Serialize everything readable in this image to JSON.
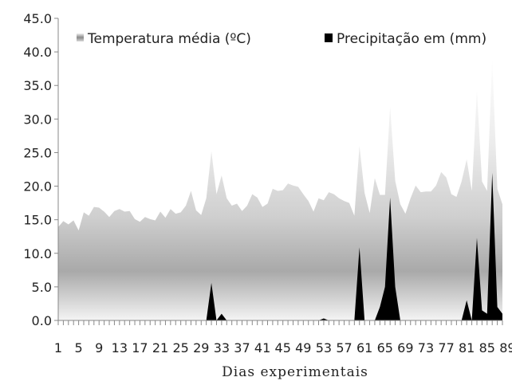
{
  "chart_data": {
    "type": "area",
    "xlabel": "Dias  experimentais",
    "ylabel": "",
    "ylim": [
      0,
      45
    ],
    "yticks": [
      "0.0",
      "5.0",
      "10.0",
      "15.0",
      "20.0",
      "25.0",
      "30.0",
      "35.0",
      "40.0",
      "45.0"
    ],
    "x_tick_labels": [
      "1",
      "5",
      "9",
      "13",
      "17",
      "21",
      "25",
      "29",
      "33",
      "37",
      "41",
      "45",
      "49",
      "53",
      "57",
      "61",
      "65",
      "69",
      "73",
      "77",
      "81",
      "85",
      "89"
    ],
    "legend_position": "top",
    "x": [
      1,
      2,
      3,
      4,
      5,
      6,
      7,
      8,
      9,
      10,
      11,
      12,
      13,
      14,
      15,
      16,
      17,
      18,
      19,
      20,
      21,
      22,
      23,
      24,
      25,
      26,
      27,
      28,
      29,
      30,
      31,
      32,
      33,
      34,
      35,
      36,
      37,
      38,
      39,
      40,
      41,
      42,
      43,
      44,
      45,
      46,
      47,
      48,
      49,
      50,
      51,
      52,
      53,
      54,
      55,
      56,
      57,
      58,
      59,
      60,
      61,
      62,
      63,
      64,
      65,
      66,
      67,
      68,
      69,
      70,
      71,
      72,
      73,
      74,
      75,
      76,
      77,
      78,
      79,
      80,
      81,
      82,
      83,
      84,
      85,
      86,
      87,
      88
    ],
    "series": [
      {
        "name": "Temperatura média (ºC)",
        "values": [
          13.9,
          14.8,
          14.3,
          14.9,
          13.4,
          16.1,
          15.6,
          16.9,
          16.8,
          16.2,
          15.4,
          16.3,
          16.6,
          16.2,
          16.3,
          15.1,
          14.7,
          15.4,
          15.1,
          14.9,
          16.2,
          15.3,
          16.6,
          15.9,
          16.1,
          17.1,
          19.3,
          16.4,
          15.7,
          18.2,
          25.2,
          18.8,
          21.6,
          18.2,
          17.1,
          17.4,
          16.3,
          17.1,
          18.8,
          18.3,
          16.9,
          17.4,
          19.6,
          19.3,
          19.4,
          20.4,
          20.1,
          19.9,
          18.8,
          17.8,
          16.2,
          18.2,
          17.9,
          19.1,
          18.8,
          18.2,
          17.8,
          17.5,
          15.6,
          26.0,
          19.0,
          16.0,
          21.2,
          18.7,
          18.7,
          31.8,
          20.8,
          17.3,
          15.9,
          18.2,
          20.1,
          19.1,
          19.2,
          19.2,
          20.1,
          22.1,
          21.3,
          18.8,
          18.4,
          20.7,
          24.0,
          19.3,
          34.2,
          20.7,
          19.3,
          38.9,
          19.6,
          17.3
        ],
        "color": "#9a9a9a"
      },
      {
        "name": "Precipitação em (mm)",
        "values": [
          0,
          0,
          0,
          0,
          0,
          0,
          0,
          0,
          0,
          0,
          0,
          0,
          0,
          0,
          0,
          0,
          0,
          0,
          0,
          0,
          0,
          0,
          0,
          0,
          0,
          0,
          0,
          0,
          0,
          0,
          5.6,
          0,
          1.0,
          0,
          0,
          0,
          0,
          0,
          0,
          0,
          0,
          0,
          0,
          0,
          0,
          0,
          0,
          0,
          0,
          0,
          0,
          0,
          0.3,
          0,
          0,
          0,
          0,
          0,
          0,
          10.9,
          0,
          0,
          0,
          2.0,
          5.0,
          18.3,
          5.0,
          0,
          0,
          0,
          0,
          0,
          0,
          0,
          0,
          0,
          0,
          0,
          0,
          0,
          3.0,
          0,
          12.3,
          1.5,
          1.0,
          22.0,
          2.0,
          1.0
        ],
        "color": "#000000"
      }
    ]
  }
}
